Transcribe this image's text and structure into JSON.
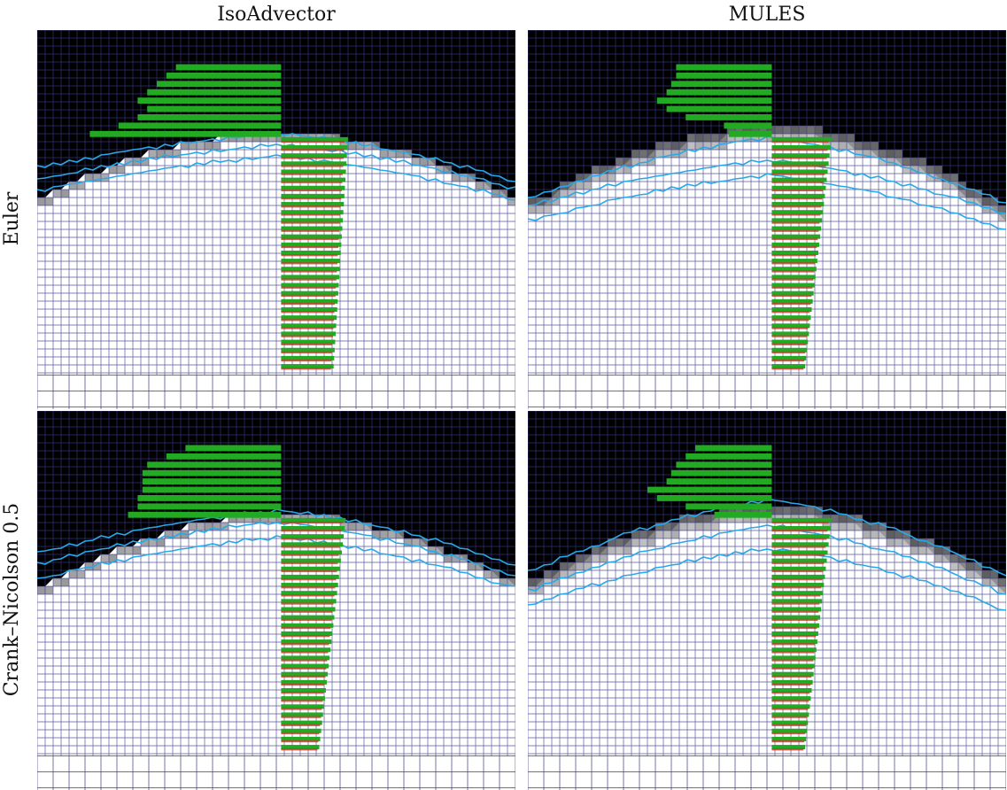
{
  "figure": {
    "column_titles": [
      "IsoAdvector",
      "MULES"
    ],
    "row_titles": [
      "Euler",
      "Crank–Nicolson 0.5"
    ]
  },
  "colors": {
    "background_fluid": "#000000",
    "liquid": "#ffffff",
    "mesh_line": "#3b3b8a",
    "contour_line": "#29a8e8",
    "vector_green": "#22aa22",
    "vector_red": "#c0392b"
  },
  "panels": [
    {
      "id": "isoadvector-euler",
      "scheme": "IsoAdvector",
      "time": "Euler",
      "interface": {
        "peak": 0.52,
        "left": 0.34,
        "right": 0.37,
        "smear": 0.03
      },
      "contours": [
        [
          0.27,
          0.36,
          0.4
        ],
        [
          0.3,
          0.39,
          0.42
        ],
        [
          0.33,
          0.42,
          0.45
        ]
      ],
      "top_vectors": [
        0.22,
        0.24,
        0.26,
        0.28,
        0.3,
        0.28,
        0.3,
        0.34,
        0.4
      ],
      "bottom_taper": 0.19,
      "bottom_extra": 0.25
    },
    {
      "id": "mules-euler",
      "scheme": "MULES",
      "time": "Euler",
      "interface": {
        "peak": 0.54,
        "left": 0.4,
        "right": 0.47,
        "smear": 0.07
      },
      "contours": [
        [
          0.28,
          0.44,
          0.46
        ],
        [
          0.34,
          0.46,
          0.49
        ],
        [
          0.38,
          0.5,
          0.53
        ]
      ],
      "top_vectors": [
        0.2,
        0.2,
        0.21,
        0.22,
        0.24,
        0.22,
        0.18,
        0.1,
        0.09
      ],
      "bottom_taper": 0.11,
      "bottom_extra": 0.22
    },
    {
      "id": "isoadvector-crank-nicolson",
      "scheme": "IsoAdvector",
      "time": "Crank–Nicolson 0.5",
      "interface": {
        "peak": 0.52,
        "left": 0.38,
        "right": 0.4,
        "smear": 0.04
      },
      "contours": [
        [
          0.26,
          0.37,
          0.41
        ],
        [
          0.29,
          0.4,
          0.44
        ],
        [
          0.33,
          0.44,
          0.47
        ]
      ],
      "top_vectors": [
        0.2,
        0.24,
        0.28,
        0.29,
        0.29,
        0.29,
        0.3,
        0.3,
        0.32
      ],
      "bottom_taper": 0.13,
      "bottom_extra": 0.24
    },
    {
      "id": "mules-crank-nicolson",
      "scheme": "MULES",
      "time": "Crank–Nicolson 0.5",
      "interface": {
        "peak": 0.55,
        "left": 0.38,
        "right": 0.43,
        "smear": 0.07
      },
      "contours": [
        [
          0.23,
          0.42,
          0.44
        ],
        [
          0.3,
          0.47,
          0.49
        ],
        [
          0.36,
          0.51,
          0.53
        ]
      ],
      "top_vectors": [
        0.16,
        0.18,
        0.2,
        0.21,
        0.22,
        0.26,
        0.24,
        0.18,
        0.12
      ],
      "bottom_taper": 0.11,
      "bottom_extra": 0.22
    }
  ]
}
